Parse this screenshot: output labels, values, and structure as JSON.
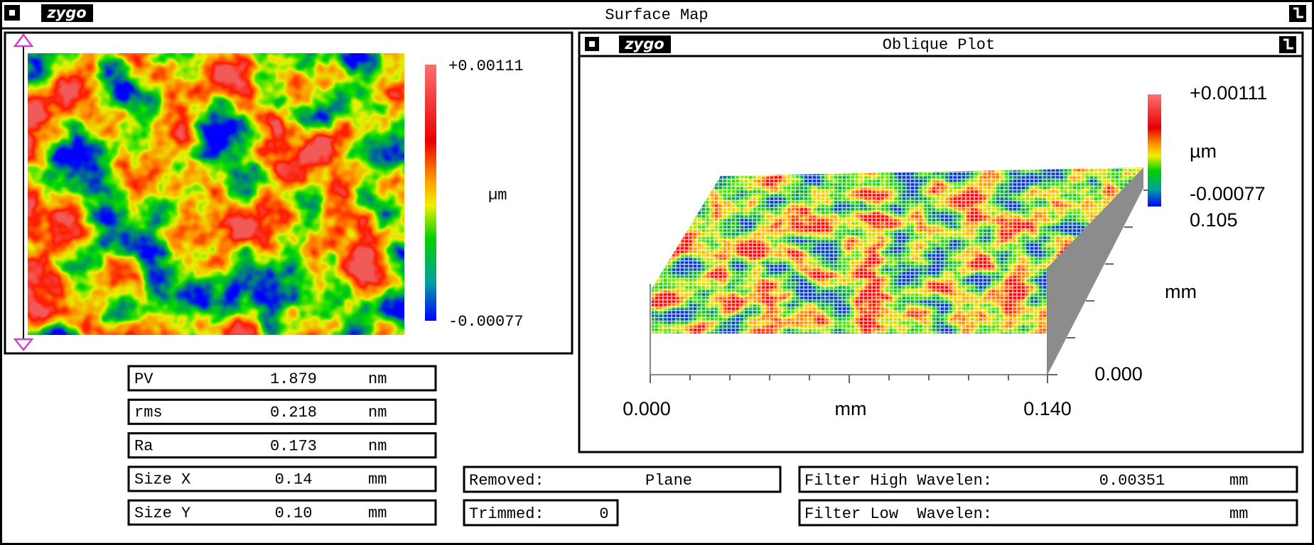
{
  "window": {
    "logo": "zygo",
    "title": "Surface Map"
  },
  "surface_map": {
    "scale_max": "+0.00111",
    "scale_unit": "µm",
    "scale_min": "-0.00077"
  },
  "oblique_plot": {
    "logo": "zygo",
    "title": "Oblique Plot",
    "scale_max": "+0.00111",
    "scale_unit": "µm",
    "scale_min": "-0.00077",
    "y_max": "0.105",
    "y_unit": "mm",
    "y_min": "0.000",
    "x_min": "0.000",
    "x_unit": "mm",
    "x_max": "0.140"
  },
  "results": [
    {
      "label": "PV",
      "value": "1.879",
      "unit": "nm"
    },
    {
      "label": "rms",
      "value": "0.218",
      "unit": "nm"
    },
    {
      "label": "Ra",
      "value": "0.173",
      "unit": "nm"
    },
    {
      "label": "Size X",
      "value": "0.14",
      "unit": "mm"
    },
    {
      "label": "Size Y",
      "value": "0.10",
      "unit": "mm"
    }
  ],
  "removed": {
    "label": "Removed:",
    "value": "Plane"
  },
  "trimmed": {
    "label": "Trimmed:",
    "value": "0"
  },
  "filters": [
    {
      "label": "Filter High Wavelen:",
      "value": "0.00351",
      "unit": "mm"
    },
    {
      "label": "Filter Low  Wavelen:",
      "unit": "mm"
    }
  ]
}
